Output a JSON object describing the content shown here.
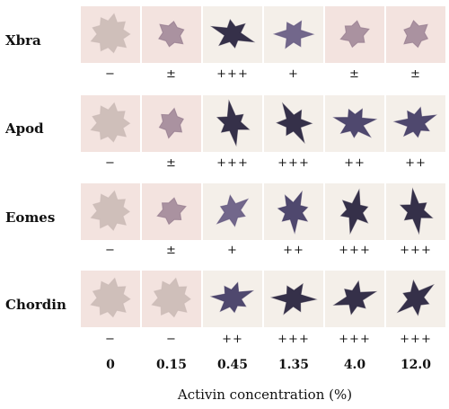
{
  "genes": [
    {
      "name": "Xbra",
      "scores": [
        "−",
        "±",
        "+++",
        "+",
        "±",
        "±"
      ]
    },
    {
      "name": "Apod",
      "scores": [
        "−",
        "±",
        "+++",
        "+++",
        "++",
        "++"
      ]
    },
    {
      "name": "Eomes",
      "scores": [
        "−",
        "±",
        "+",
        "++",
        "+++",
        "+++"
      ]
    },
    {
      "name": "Chordin",
      "scores": [
        "−",
        "−",
        "++",
        "+++",
        "+++",
        "+++"
      ]
    }
  ],
  "concentrations": [
    "0",
    "0.15",
    "0.45",
    "1.35",
    "4.0",
    "12.0"
  ],
  "axis_title": "Activin concentration  (%)",
  "colors": {
    "stain_dark": "#2a2540",
    "stain_mid": "#5a4f7a",
    "background_pink": "#f3e3df",
    "background_light": "#f4efe9",
    "tissue_faint": "#c8b8b4"
  }
}
